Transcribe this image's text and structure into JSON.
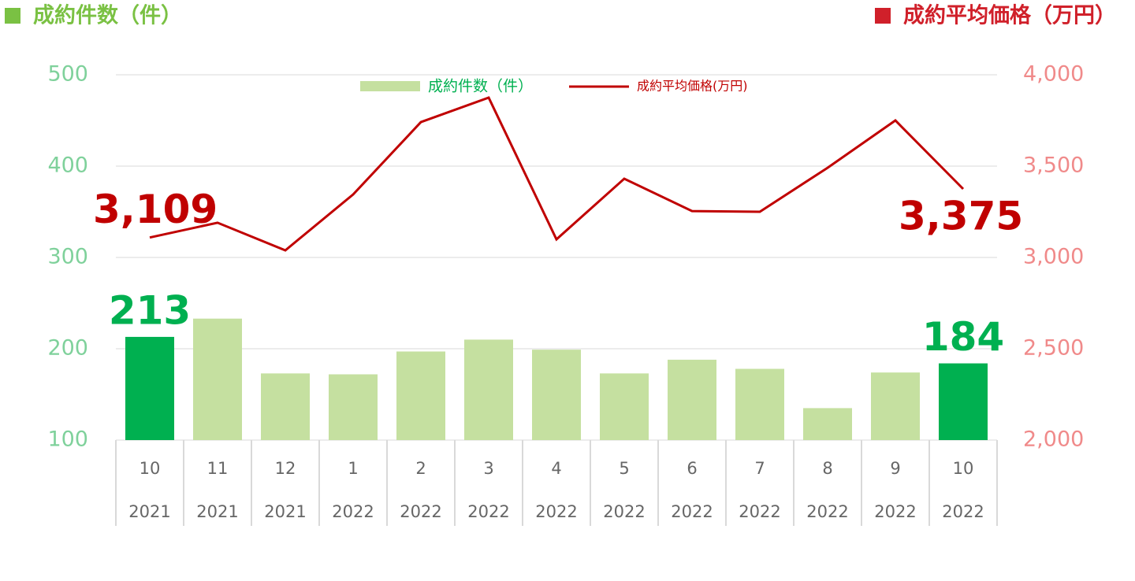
{
  "chart_data": {
    "type": "bar_line",
    "y_label": "成約件数（件）",
    "y2_label": "成約平均価格（万円）",
    "categories": [
      [
        "10",
        "2021"
      ],
      [
        "11",
        "2021"
      ],
      [
        "12",
        "2021"
      ],
      [
        "1",
        "2022"
      ],
      [
        "2",
        "2022"
      ],
      [
        "3",
        "2022"
      ],
      [
        "4",
        "2022"
      ],
      [
        "5",
        "2022"
      ],
      [
        "6",
        "2022"
      ],
      [
        "7",
        "2022"
      ],
      [
        "8",
        "2022"
      ],
      [
        "9",
        "2022"
      ],
      [
        "10",
        "2022"
      ]
    ],
    "series": [
      {
        "name": "成約件数（件）",
        "type": "bar",
        "color": "#c5e0a0",
        "highlight_color": "#00b050",
        "values": [
          213,
          233,
          173,
          172,
          197,
          210,
          199,
          173,
          188,
          178,
          135,
          174,
          184
        ],
        "value_labels": [
          "213",
          null,
          null,
          null,
          null,
          null,
          null,
          null,
          null,
          null,
          null,
          null,
          "184"
        ]
      },
      {
        "name": "成約平均価格(万円)",
        "type": "line",
        "axis": "y2",
        "color": "#c00000",
        "values": [
          3109,
          3190,
          3039,
          3345,
          3741,
          3875,
          3099,
          3431,
          3254,
          3250,
          3491,
          3750,
          3375
        ],
        "value_labels": [
          "3,109",
          null,
          null,
          null,
          null,
          null,
          null,
          null,
          null,
          null,
          null,
          null,
          "3,375"
        ]
      }
    ],
    "ylim": [
      100,
      500
    ],
    "yticks": [
      100,
      200,
      300,
      400,
      500
    ],
    "y2lim": [
      2000,
      4000
    ],
    "y2ticks": [
      {
        "value": 2000,
        "label": "2,000"
      },
      {
        "value": 2500,
        "label": "2,500"
      },
      {
        "value": 3000,
        "label": "3,000"
      },
      {
        "value": 3500,
        "label": "3,500"
      },
      {
        "value": 4000,
        "label": "4,000"
      }
    ],
    "grid": true
  }
}
